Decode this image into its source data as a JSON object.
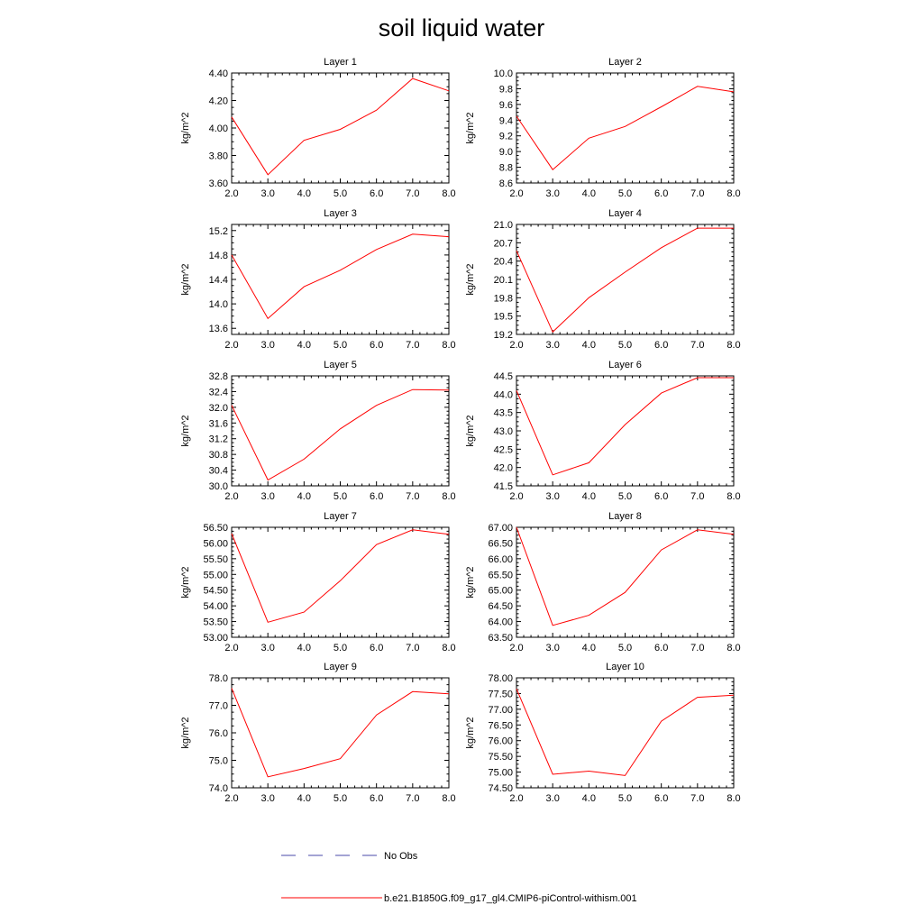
{
  "title": "soil liquid water",
  "line_color": "#ff0000",
  "obs_color": "#4a4aaa",
  "legend": [
    {
      "label": "No Obs",
      "style": "dashed"
    },
    {
      "label": "b.e21.B1850G.f09_g17_gl4.CMIP6-piControl-withism.001",
      "style": "solid"
    }
  ],
  "chart_data": [
    {
      "type": "line",
      "title": "Layer 1",
      "ylabel": "kg/m^2",
      "xlim": [
        2,
        8
      ],
      "ylim": [
        3.6,
        4.4
      ],
      "yticks": [
        "3.60",
        "3.80",
        "4.00",
        "4.20",
        "4.40"
      ],
      "xticks": [
        "2.0",
        "3.0",
        "4.0",
        "5.0",
        "6.0",
        "7.0",
        "8.0"
      ],
      "x": [
        2,
        3,
        4,
        5,
        6,
        7,
        8
      ],
      "y": [
        4.08,
        3.66,
        3.91,
        3.99,
        4.13,
        4.36,
        4.27
      ]
    },
    {
      "type": "line",
      "title": "Layer 2",
      "ylabel": "kg/m^2",
      "xlim": [
        2,
        8
      ],
      "ylim": [
        8.6,
        10.0
      ],
      "yticks": [
        "8.6",
        "8.8",
        "9.0",
        "9.2",
        "9.4",
        "9.6",
        "9.8",
        "10.0"
      ],
      "xticks": [
        "2.0",
        "3.0",
        "4.0",
        "5.0",
        "6.0",
        "7.0",
        "8.0"
      ],
      "x": [
        2,
        3,
        4,
        5,
        6,
        7,
        8
      ],
      "y": [
        9.45,
        8.77,
        9.17,
        9.32,
        9.57,
        9.83,
        9.76
      ]
    },
    {
      "type": "line",
      "title": "Layer 3",
      "ylabel": "kg/m^2",
      "xlim": [
        2,
        8
      ],
      "ylim": [
        13.5,
        15.3
      ],
      "yticks": [
        "13.6",
        "14.0",
        "14.4",
        "14.8",
        "15.2"
      ],
      "xticks": [
        "2.0",
        "3.0",
        "4.0",
        "5.0",
        "6.0",
        "7.0",
        "8.0"
      ],
      "x": [
        2,
        3,
        4,
        5,
        6,
        7,
        8
      ],
      "y": [
        14.8,
        13.76,
        14.28,
        14.55,
        14.89,
        15.14,
        15.1
      ]
    },
    {
      "type": "line",
      "title": "Layer 4",
      "ylabel": "kg/m^2",
      "xlim": [
        2,
        8
      ],
      "ylim": [
        19.2,
        21.0
      ],
      "yticks": [
        "19.2",
        "19.5",
        "19.8",
        "20.1",
        "20.4",
        "20.7",
        "21.0"
      ],
      "xticks": [
        "2.0",
        "3.0",
        "4.0",
        "5.0",
        "6.0",
        "7.0",
        "8.0"
      ],
      "x": [
        2,
        3,
        4,
        5,
        6,
        7,
        8
      ],
      "y": [
        20.57,
        19.24,
        19.8,
        20.22,
        20.62,
        20.94,
        20.94
      ]
    },
    {
      "type": "line",
      "title": "Layer 5",
      "ylabel": "kg/m^2",
      "xlim": [
        2,
        8
      ],
      "ylim": [
        30.0,
        32.8
      ],
      "yticks": [
        "30.0",
        "30.4",
        "30.8",
        "31.2",
        "31.6",
        "32.0",
        "32.4",
        "32.8"
      ],
      "xticks": [
        "2.0",
        "3.0",
        "4.0",
        "5.0",
        "6.0",
        "7.0",
        "8.0"
      ],
      "x": [
        2,
        3,
        4,
        5,
        6,
        7,
        8
      ],
      "y": [
        32.05,
        30.15,
        30.68,
        31.45,
        32.05,
        32.45,
        32.44
      ]
    },
    {
      "type": "line",
      "title": "Layer 6",
      "ylabel": "kg/m^2",
      "xlim": [
        2,
        8
      ],
      "ylim": [
        41.5,
        44.5
      ],
      "yticks": [
        "41.5",
        "42.0",
        "42.5",
        "43.0",
        "43.5",
        "44.0",
        "44.5"
      ],
      "xticks": [
        "2.0",
        "3.0",
        "4.0",
        "5.0",
        "6.0",
        "7.0",
        "8.0"
      ],
      "x": [
        2,
        3,
        4,
        5,
        6,
        7,
        8
      ],
      "y": [
        44.1,
        41.8,
        42.13,
        43.17,
        44.03,
        44.45,
        44.45
      ]
    },
    {
      "type": "line",
      "title": "Layer 7",
      "ylabel": "kg/m^2",
      "xlim": [
        2,
        8
      ],
      "ylim": [
        53.0,
        56.5
      ],
      "yticks": [
        "53.00",
        "53.50",
        "54.00",
        "54.50",
        "55.00",
        "55.50",
        "56.00",
        "56.50"
      ],
      "xticks": [
        "2.0",
        "3.0",
        "4.0",
        "5.0",
        "6.0",
        "7.0",
        "8.0"
      ],
      "x": [
        2,
        3,
        4,
        5,
        6,
        7,
        8
      ],
      "y": [
        56.3,
        53.48,
        53.8,
        54.8,
        55.95,
        56.42,
        56.28
      ]
    },
    {
      "type": "line",
      "title": "Layer 8",
      "ylabel": "kg/m^2",
      "xlim": [
        2,
        8
      ],
      "ylim": [
        63.5,
        67.0
      ],
      "yticks": [
        "63.50",
        "64.00",
        "64.50",
        "65.00",
        "65.50",
        "66.00",
        "66.50",
        "67.00"
      ],
      "xticks": [
        "2.0",
        "3.0",
        "4.0",
        "5.0",
        "6.0",
        "7.0",
        "8.0"
      ],
      "x": [
        2,
        3,
        4,
        5,
        6,
        7,
        8
      ],
      "y": [
        67.0,
        63.88,
        64.2,
        64.93,
        66.28,
        66.92,
        66.78
      ]
    },
    {
      "type": "line",
      "title": "Layer 9",
      "ylabel": "kg/m^2",
      "xlim": [
        2,
        8
      ],
      "ylim": [
        74.0,
        78.0
      ],
      "yticks": [
        "74.0",
        "75.0",
        "76.0",
        "77.0",
        "78.0"
      ],
      "xticks": [
        "2.0",
        "3.0",
        "4.0",
        "5.0",
        "6.0",
        "7.0",
        "8.0"
      ],
      "x": [
        2,
        3,
        4,
        5,
        6,
        7,
        8
      ],
      "y": [
        77.62,
        74.4,
        74.7,
        75.06,
        76.65,
        77.5,
        77.42
      ]
    },
    {
      "type": "line",
      "title": "Layer 10",
      "ylabel": "kg/m^2",
      "xlim": [
        2,
        8
      ],
      "ylim": [
        74.5,
        78.0
      ],
      "yticks": [
        "74.50",
        "75.00",
        "75.50",
        "76.00",
        "76.50",
        "77.00",
        "77.50",
        "78.00"
      ],
      "xticks": [
        "2.0",
        "3.0",
        "4.0",
        "5.0",
        "6.0",
        "7.0",
        "8.0"
      ],
      "x": [
        2,
        3,
        4,
        5,
        6,
        7,
        8
      ],
      "y": [
        77.65,
        74.93,
        75.03,
        74.89,
        76.62,
        77.38,
        77.45
      ]
    }
  ]
}
